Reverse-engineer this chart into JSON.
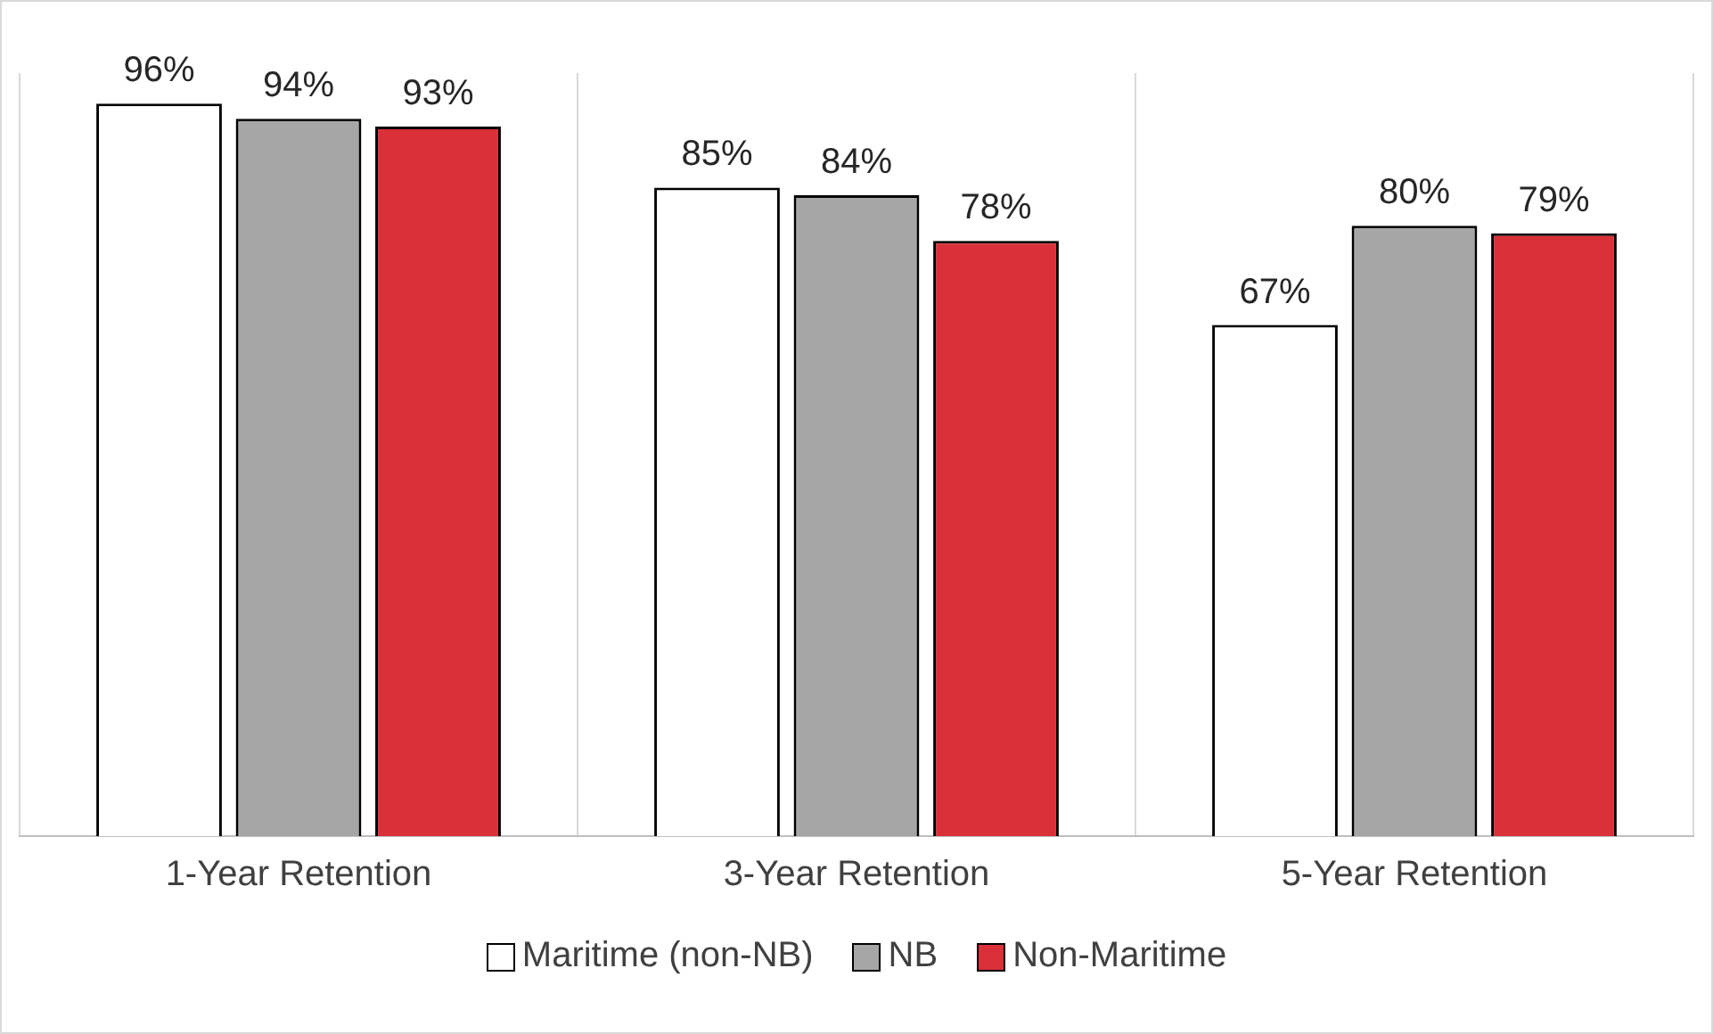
{
  "chart_data": {
    "type": "bar",
    "categories": [
      "1-Year Retention",
      "3-Year Retention",
      "5-Year Retention"
    ],
    "series": [
      {
        "name": "Maritime (non-NB)",
        "color": "#ffffff",
        "values": [
          96,
          85,
          67
        ],
        "value_labels": [
          "96%",
          "85%",
          "67%"
        ]
      },
      {
        "name": "NB",
        "color": "#a6a6a6",
        "values": [
          94,
          84,
          80
        ],
        "value_labels": [
          "94%",
          "84%",
          "80%"
        ]
      },
      {
        "name": "Non-Maritime",
        "color": "#d9303a",
        "values": [
          93,
          78,
          79
        ],
        "value_labels": [
          "93%",
          "78%",
          "79%"
        ]
      }
    ],
    "grid": "x",
    "legend": "bottom",
    "tick_labels": "x"
  }
}
